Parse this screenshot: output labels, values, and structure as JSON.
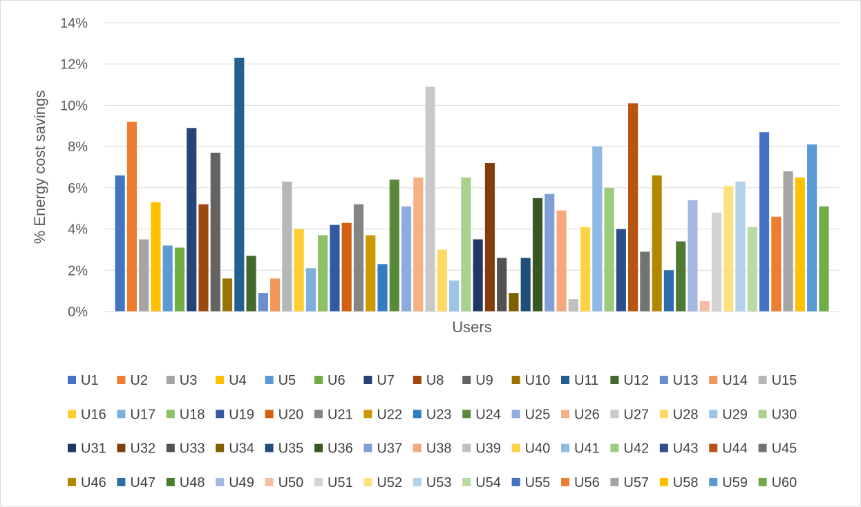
{
  "chart_data": {
    "type": "bar",
    "xlabel": "Users",
    "ylabel": "% Energy cost savings",
    "ylim": [
      0,
      14
    ],
    "yticks": [
      "0%",
      "2%",
      "4%",
      "6%",
      "8%",
      "10%",
      "12%",
      "14%"
    ],
    "grid": true,
    "legend_position": "bottom",
    "series": [
      {
        "name": "U1",
        "value": 6.6,
        "color": "#4472C4"
      },
      {
        "name": "U2",
        "value": 9.2,
        "color": "#ED7D31"
      },
      {
        "name": "U3",
        "value": 3.5,
        "color": "#A5A5A5"
      },
      {
        "name": "U4",
        "value": 5.3,
        "color": "#FFC000"
      },
      {
        "name": "U5",
        "value": 3.2,
        "color": "#5B9BD5"
      },
      {
        "name": "U6",
        "value": 3.1,
        "color": "#70AD47"
      },
      {
        "name": "U7",
        "value": 8.9,
        "color": "#264478"
      },
      {
        "name": "U8",
        "value": 5.2,
        "color": "#9E480E"
      },
      {
        "name": "U9",
        "value": 7.7,
        "color": "#636363"
      },
      {
        "name": "U10",
        "value": 1.6,
        "color": "#997300"
      },
      {
        "name": "U11",
        "value": 12.3,
        "color": "#255E91"
      },
      {
        "name": "U12",
        "value": 2.7,
        "color": "#43682B"
      },
      {
        "name": "U13",
        "value": 0.9,
        "color": "#698ED0"
      },
      {
        "name": "U14",
        "value": 1.6,
        "color": "#F1975A"
      },
      {
        "name": "U15",
        "value": 6.3,
        "color": "#B7B7B7"
      },
      {
        "name": "U16",
        "value": 4.0,
        "color": "#FFCD33"
      },
      {
        "name": "U17",
        "value": 2.1,
        "color": "#7CAFDD"
      },
      {
        "name": "U18",
        "value": 3.7,
        "color": "#8CC168"
      },
      {
        "name": "U19",
        "value": 4.2,
        "color": "#335AA1"
      },
      {
        "name": "U20",
        "value": 4.3,
        "color": "#D26012"
      },
      {
        "name": "U21",
        "value": 5.2,
        "color": "#848484"
      },
      {
        "name": "U22",
        "value": 3.7,
        "color": "#CC9A00"
      },
      {
        "name": "U23",
        "value": 2.3,
        "color": "#327DC2"
      },
      {
        "name": "U24",
        "value": 6.4,
        "color": "#5A8A39"
      },
      {
        "name": "U25",
        "value": 5.1,
        "color": "#8FAADC"
      },
      {
        "name": "U26",
        "value": 6.5,
        "color": "#F4B183"
      },
      {
        "name": "U27",
        "value": 10.9,
        "color": "#C9C9C9"
      },
      {
        "name": "U28",
        "value": 3.0,
        "color": "#FFD966"
      },
      {
        "name": "U29",
        "value": 1.5,
        "color": "#9DC3E6"
      },
      {
        "name": "U30",
        "value": 6.5,
        "color": "#A9D18E"
      },
      {
        "name": "U31",
        "value": 3.5,
        "color": "#203864"
      },
      {
        "name": "U32",
        "value": 7.2,
        "color": "#843C0C"
      },
      {
        "name": "U33",
        "value": 2.6,
        "color": "#525252"
      },
      {
        "name": "U34",
        "value": 0.9,
        "color": "#7F6000"
      },
      {
        "name": "U35",
        "value": 2.6,
        "color": "#1F4E79"
      },
      {
        "name": "U36",
        "value": 5.5,
        "color": "#385723"
      },
      {
        "name": "U37",
        "value": 5.7,
        "color": "#7F9FD6"
      },
      {
        "name": "U38",
        "value": 4.9,
        "color": "#F4A87C"
      },
      {
        "name": "U39",
        "value": 0.6,
        "color": "#BFBFBF"
      },
      {
        "name": "U40",
        "value": 4.1,
        "color": "#FFD246"
      },
      {
        "name": "U41",
        "value": 8.0,
        "color": "#8DBAE2"
      },
      {
        "name": "U42",
        "value": 6.0,
        "color": "#9BCB7C"
      },
      {
        "name": "U43",
        "value": 4.0,
        "color": "#2E4F8C"
      },
      {
        "name": "U44",
        "value": 10.1,
        "color": "#B85411"
      },
      {
        "name": "U45",
        "value": 2.9,
        "color": "#737373"
      },
      {
        "name": "U46",
        "value": 6.6,
        "color": "#B38600"
      },
      {
        "name": "U47",
        "value": 2.0,
        "color": "#2C6DAA"
      },
      {
        "name": "U48",
        "value": 3.4,
        "color": "#4E7A32"
      },
      {
        "name": "U49",
        "value": 5.4,
        "color": "#A4B8E2"
      },
      {
        "name": "U50",
        "value": 0.5,
        "color": "#F6BEA0"
      },
      {
        "name": "U51",
        "value": 4.8,
        "color": "#D4D4D4"
      },
      {
        "name": "U52",
        "value": 6.1,
        "color": "#FFE17F"
      },
      {
        "name": "U53",
        "value": 6.3,
        "color": "#B4D1EC"
      },
      {
        "name": "U54",
        "value": 4.1,
        "color": "#B9DAA3"
      },
      {
        "name": "U55",
        "value": 8.7,
        "color": "#4472C4"
      },
      {
        "name": "U56",
        "value": 4.6,
        "color": "#ED7D31"
      },
      {
        "name": "U57",
        "value": 6.8,
        "color": "#A5A5A5"
      },
      {
        "name": "U58",
        "value": 6.5,
        "color": "#FFC000"
      },
      {
        "name": "U59",
        "value": 8.1,
        "color": "#5B9BD5"
      },
      {
        "name": "U60",
        "value": 5.1,
        "color": "#70AD47"
      }
    ]
  }
}
